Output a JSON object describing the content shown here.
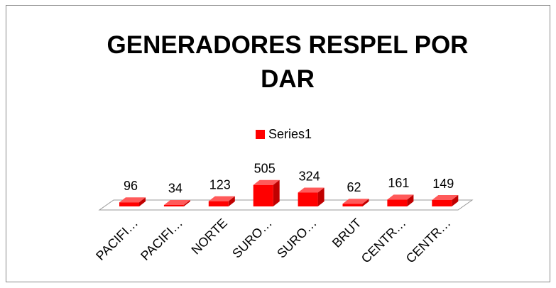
{
  "chart_data": {
    "type": "bar3d",
    "title": "GENERADORES RESPEL POR DAR",
    "categories": [
      "PACIFI…",
      "PACIFI…",
      "NORTE",
      "SURO…",
      "SURO…",
      "BRUT",
      "CENTR…",
      "CENTR…"
    ],
    "series": [
      {
        "name": "Series1",
        "color": "#ff0000",
        "values": [
          96,
          34,
          123,
          505,
          324,
          62,
          161,
          149
        ]
      }
    ],
    "legend": "top"
  }
}
